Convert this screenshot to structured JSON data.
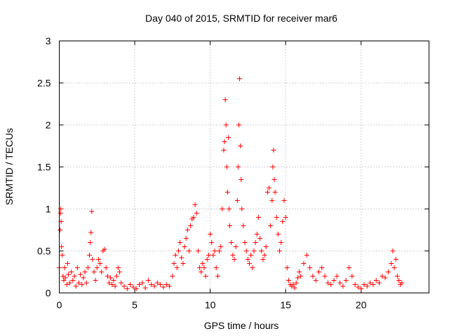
{
  "chart_data": {
    "type": "scatter",
    "title": "Day 040 of 2015, SRMTID for receiver mar6",
    "xlabel": "GPS time / hours",
    "ylabel": "SRMTID / TECUs",
    "xlim": [
      0,
      24.5
    ],
    "ylim": [
      0,
      3
    ],
    "x_ticks": [
      "0",
      "5",
      "10",
      "15",
      "20"
    ],
    "x_tick_values": [
      0,
      5,
      10,
      15,
      20
    ],
    "y_ticks": [
      "0",
      "0.5",
      "1",
      "1.5",
      "2",
      "2.5",
      "3"
    ],
    "y_tick_values": [
      0,
      0.5,
      1,
      1.5,
      2,
      2.5,
      3
    ],
    "grid": true,
    "marker": "plus",
    "series": [
      {
        "name": "SRMTID",
        "color": "#ff0000",
        "points": [
          [
            0.0,
            0.3
          ],
          [
            0.05,
            0.75
          ],
          [
            0.08,
            0.95
          ],
          [
            0.1,
            1.0
          ],
          [
            0.12,
            0.85
          ],
          [
            0.15,
            0.55
          ],
          [
            0.2,
            0.45
          ],
          [
            0.25,
            0.2
          ],
          [
            0.3,
            0.15
          ],
          [
            0.35,
            0.3
          ],
          [
            0.4,
            0.18
          ],
          [
            0.5,
            0.1
          ],
          [
            0.55,
            0.35
          ],
          [
            0.6,
            0.22
          ],
          [
            0.7,
            0.12
          ],
          [
            0.8,
            0.25
          ],
          [
            0.9,
            0.15
          ],
          [
            1.0,
            0.2
          ],
          [
            1.1,
            0.08
          ],
          [
            1.2,
            0.3
          ],
          [
            1.3,
            0.12
          ],
          [
            1.4,
            0.22
          ],
          [
            1.5,
            0.1
          ],
          [
            1.6,
            0.18
          ],
          [
            1.7,
            0.25
          ],
          [
            1.8,
            0.12
          ],
          [
            1.9,
            0.3
          ],
          [
            2.0,
            0.45
          ],
          [
            2.05,
            0.6
          ],
          [
            2.1,
            0.72
          ],
          [
            2.15,
            0.97
          ],
          [
            2.2,
            0.4
          ],
          [
            2.3,
            0.25
          ],
          [
            2.4,
            0.15
          ],
          [
            2.5,
            0.3
          ],
          [
            2.6,
            0.4
          ],
          [
            2.7,
            0.35
          ],
          [
            2.8,
            0.25
          ],
          [
            2.9,
            0.5
          ],
          [
            3.0,
            0.52
          ],
          [
            3.1,
            0.3
          ],
          [
            3.2,
            0.2
          ],
          [
            3.3,
            0.12
          ],
          [
            3.4,
            0.18
          ],
          [
            3.5,
            0.1
          ],
          [
            3.6,
            0.15
          ],
          [
            3.7,
            0.08
          ],
          [
            3.8,
            0.2
          ],
          [
            3.9,
            0.3
          ],
          [
            4.0,
            0.25
          ],
          [
            4.1,
            0.12
          ],
          [
            4.3,
            0.08
          ],
          [
            4.5,
            0.05
          ],
          [
            4.7,
            0.1
          ],
          [
            4.9,
            0.07
          ],
          [
            5.1,
            0.05
          ],
          [
            5.3,
            0.1
          ],
          [
            5.5,
            0.12
          ],
          [
            5.7,
            0.06
          ],
          [
            5.9,
            0.15
          ],
          [
            6.1,
            0.1
          ],
          [
            6.3,
            0.08
          ],
          [
            6.5,
            0.12
          ],
          [
            6.7,
            0.1
          ],
          [
            6.9,
            0.07
          ],
          [
            7.1,
            0.1
          ],
          [
            7.3,
            0.08
          ],
          [
            7.5,
            0.2
          ],
          [
            7.6,
            0.35
          ],
          [
            7.7,
            0.45
          ],
          [
            7.8,
            0.3
          ],
          [
            7.9,
            0.5
          ],
          [
            8.0,
            0.6
          ],
          [
            8.1,
            0.42
          ],
          [
            8.2,
            0.35
          ],
          [
            8.3,
            0.55
          ],
          [
            8.4,
            0.65
          ],
          [
            8.5,
            0.75
          ],
          [
            8.6,
            0.5
          ],
          [
            8.7,
            0.8
          ],
          [
            8.8,
            0.88
          ],
          [
            8.9,
            0.9
          ],
          [
            9.0,
            1.05
          ],
          [
            9.1,
            0.95
          ],
          [
            9.2,
            0.5
          ],
          [
            9.3,
            0.3
          ],
          [
            9.4,
            0.25
          ],
          [
            9.5,
            0.35
          ],
          [
            9.6,
            0.3
          ],
          [
            9.7,
            0.2
          ],
          [
            9.8,
            0.4
          ],
          [
            9.9,
            0.45
          ],
          [
            10.0,
            0.7
          ],
          [
            10.1,
            0.6
          ],
          [
            10.2,
            0.45
          ],
          [
            10.3,
            0.5
          ],
          [
            10.4,
            0.3
          ],
          [
            10.5,
            0.2
          ],
          [
            10.6,
            0.5
          ],
          [
            10.7,
            0.55
          ],
          [
            10.8,
            1.0
          ],
          [
            10.9,
            1.7
          ],
          [
            10.95,
            1.8
          ],
          [
            11.0,
            2.3
          ],
          [
            11.05,
            2.0
          ],
          [
            11.1,
            1.5
          ],
          [
            11.15,
            1.2
          ],
          [
            11.2,
            1.85
          ],
          [
            11.25,
            1.0
          ],
          [
            11.3,
            0.8
          ],
          [
            11.4,
            0.6
          ],
          [
            11.5,
            0.45
          ],
          [
            11.6,
            0.4
          ],
          [
            11.7,
            0.55
          ],
          [
            11.8,
            1.1
          ],
          [
            11.85,
            1.5
          ],
          [
            11.9,
            2.0
          ],
          [
            11.95,
            2.55
          ],
          [
            12.0,
            1.75
          ],
          [
            12.05,
            1.35
          ],
          [
            12.1,
            1.0
          ],
          [
            12.2,
            0.8
          ],
          [
            12.3,
            0.6
          ],
          [
            12.4,
            0.5
          ],
          [
            12.5,
            0.4
          ],
          [
            12.6,
            0.35
          ],
          [
            12.7,
            0.45
          ],
          [
            12.8,
            0.3
          ],
          [
            12.9,
            0.5
          ],
          [
            13.0,
            0.6
          ],
          [
            13.1,
            0.7
          ],
          [
            13.2,
            0.9
          ],
          [
            13.3,
            0.65
          ],
          [
            13.4,
            0.5
          ],
          [
            13.5,
            0.4
          ],
          [
            13.6,
            0.45
          ],
          [
            13.7,
            0.55
          ],
          [
            13.8,
            1.2
          ],
          [
            13.9,
            1.25
          ],
          [
            14.0,
            0.8
          ],
          [
            14.1,
            1.1
          ],
          [
            14.15,
            1.5
          ],
          [
            14.2,
            1.7
          ],
          [
            14.25,
            1.35
          ],
          [
            14.3,
            1.2
          ],
          [
            14.4,
            0.9
          ],
          [
            14.5,
            0.7
          ],
          [
            14.6,
            0.5
          ],
          [
            14.7,
            0.6
          ],
          [
            14.8,
            0.85
          ],
          [
            14.9,
            1.1
          ],
          [
            15.0,
            0.9
          ],
          [
            15.1,
            0.3
          ],
          [
            15.2,
            0.15
          ],
          [
            15.3,
            0.1
          ],
          [
            15.4,
            0.08
          ],
          [
            15.5,
            0.1
          ],
          [
            15.6,
            0.06
          ],
          [
            15.7,
            0.12
          ],
          [
            15.8,
            0.18
          ],
          [
            15.9,
            0.25
          ],
          [
            16.0,
            0.2
          ],
          [
            16.2,
            0.35
          ],
          [
            16.4,
            0.45
          ],
          [
            16.6,
            0.3
          ],
          [
            16.8,
            0.2
          ],
          [
            17.0,
            0.15
          ],
          [
            17.2,
            0.25
          ],
          [
            17.4,
            0.3
          ],
          [
            17.6,
            0.2
          ],
          [
            17.8,
            0.12
          ],
          [
            18.0,
            0.1
          ],
          [
            18.2,
            0.15
          ],
          [
            18.4,
            0.2
          ],
          [
            18.6,
            0.12
          ],
          [
            18.8,
            0.08
          ],
          [
            19.0,
            0.15
          ],
          [
            19.2,
            0.3
          ],
          [
            19.4,
            0.2
          ],
          [
            19.6,
            0.1
          ],
          [
            19.8,
            0.07
          ],
          [
            20.0,
            0.05
          ],
          [
            20.2,
            0.1
          ],
          [
            20.4,
            0.08
          ],
          [
            20.6,
            0.12
          ],
          [
            20.8,
            0.1
          ],
          [
            21.0,
            0.15
          ],
          [
            21.2,
            0.12
          ],
          [
            21.4,
            0.2
          ],
          [
            21.6,
            0.18
          ],
          [
            21.8,
            0.25
          ],
          [
            22.0,
            0.35
          ],
          [
            22.1,
            0.5
          ],
          [
            22.2,
            0.3
          ],
          [
            22.3,
            0.4
          ],
          [
            22.4,
            0.2
          ],
          [
            22.5,
            0.15
          ],
          [
            22.6,
            0.1
          ],
          [
            22.7,
            0.12
          ]
        ]
      }
    ]
  }
}
